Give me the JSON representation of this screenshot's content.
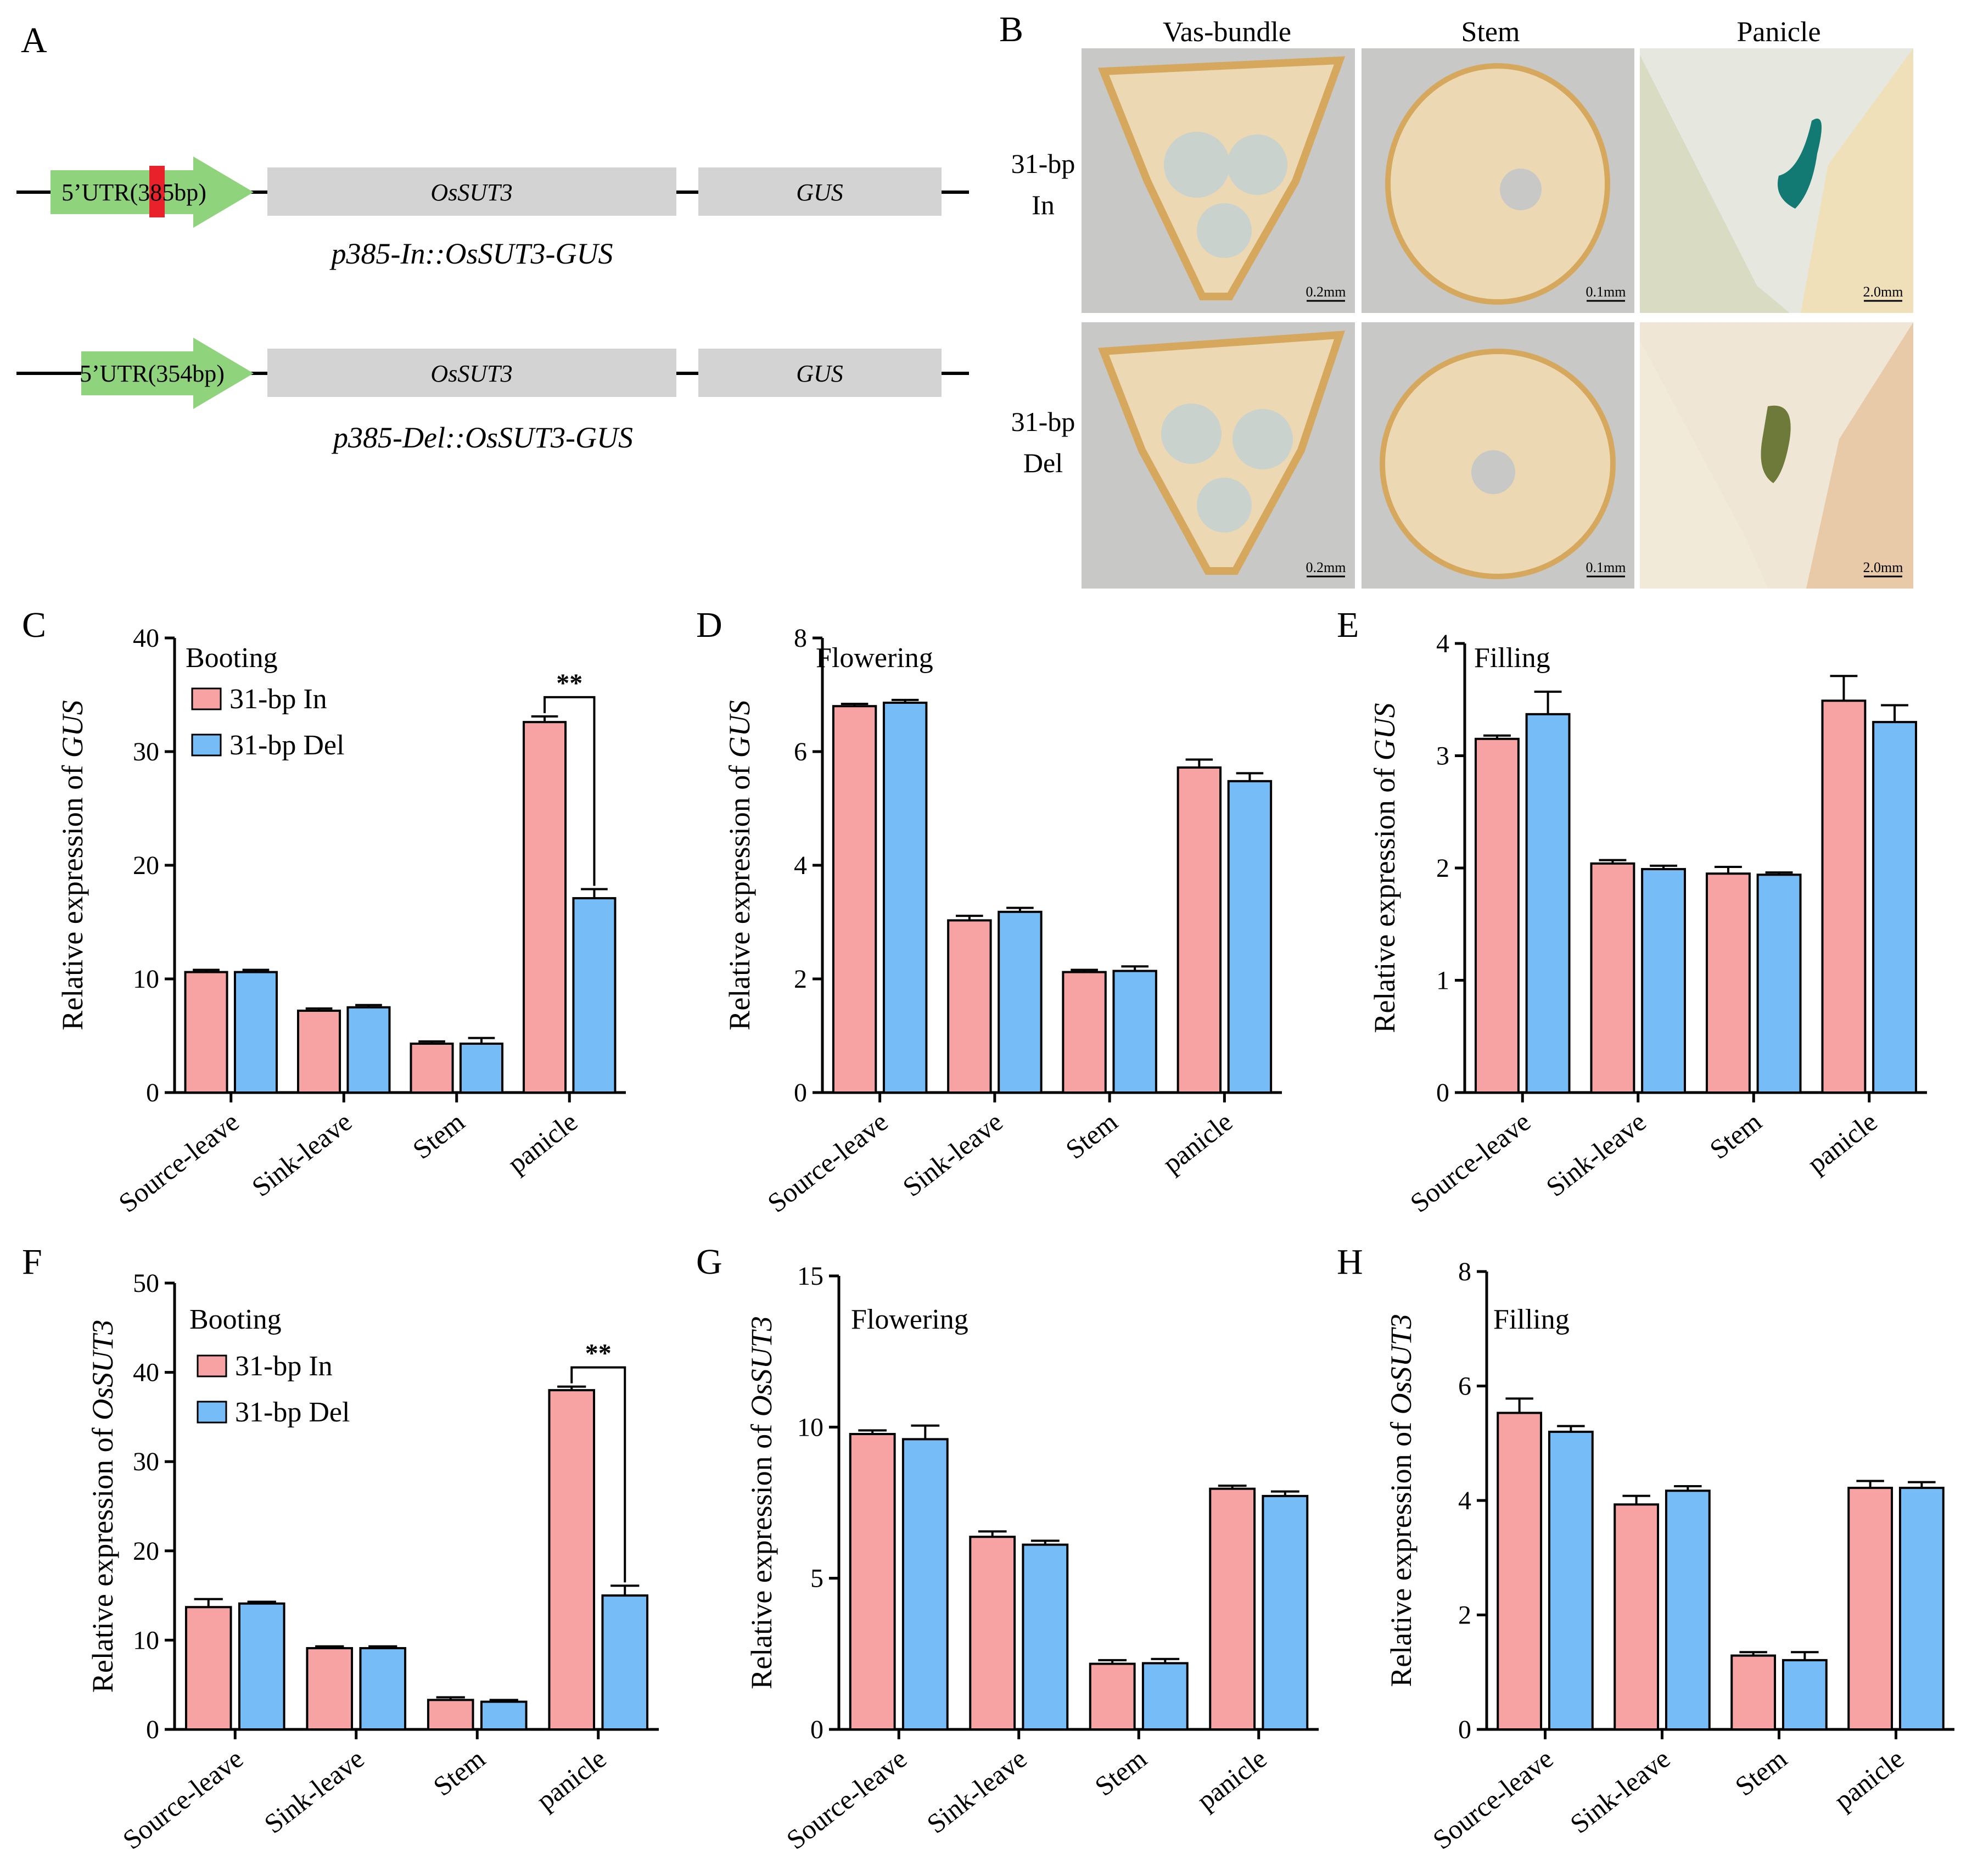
{
  "colors": {
    "in": "#f7a3a3",
    "del": "#76bcf6",
    "promoter": "#8fd47c",
    "insert_marker": "#e8212a",
    "gene_box": "#d3d3d3",
    "photo_bg": "#c8c8c6",
    "tissue": "#ecd9b4",
    "tissue_edge": "#d6a85e",
    "gus_stain": "#127a72"
  },
  "panelA": {
    "letter": "A",
    "row1": {
      "promoter_label": "5’UTR(385bp)",
      "gene1": "OsSUT3",
      "gene2": "GUS",
      "caption": "p385-In::OsSUT3-GUS"
    },
    "row2": {
      "promoter_label": "5’UTR(354bp)",
      "gene1": "OsSUT3",
      "gene2": "GUS",
      "caption": "p385-Del::OsSUT3-GUS"
    }
  },
  "panelB": {
    "letter": "B",
    "columns": [
      "Vas-bundle",
      "Stem",
      "Panicle"
    ],
    "rows": [
      {
        "label_line1": "31-bp",
        "label_line2": "In",
        "scales": [
          "0.2mm",
          "0.1mm",
          "2.0mm"
        ]
      },
      {
        "label_line1": "31-bp",
        "label_line2": "Del",
        "scales": [
          "0.2mm",
          "0.1mm",
          "2.0mm"
        ]
      }
    ]
  },
  "legend": {
    "in": "31-bp In",
    "del": "31-bp Del"
  },
  "chart_data": [
    {
      "letter": "C",
      "type": "bar",
      "title": "Booting",
      "ylabel_prefix": "Relative expression of ",
      "ylabel_gene": "GUS",
      "ylim": [
        0,
        40
      ],
      "yticks": [
        "0",
        "10",
        "20",
        "30",
        "40"
      ],
      "categories": [
        "Source-leave",
        "Sink-leave",
        "Stem",
        "panicle"
      ],
      "series": [
        {
          "name": "31-bp In",
          "values": [
            10.6,
            7.2,
            4.3,
            32.6
          ],
          "errors": [
            0.2,
            0.2,
            0.2,
            0.5
          ]
        },
        {
          "name": "31-bp Del",
          "values": [
            10.6,
            7.5,
            4.3,
            17.1
          ],
          "errors": [
            0.2,
            0.2,
            0.5,
            0.8
          ]
        }
      ],
      "significance": {
        "category_index": 3,
        "label": "**"
      },
      "legend": true
    },
    {
      "letter": "D",
      "type": "bar",
      "title": "Flowering",
      "ylabel_prefix": "Relative expression of ",
      "ylabel_gene": "GUS",
      "ylim": [
        0,
        8
      ],
      "yticks": [
        "0",
        "2",
        "4",
        "6",
        "8"
      ],
      "categories": [
        "Source-leave",
        "Sink-leave",
        "Stem",
        "panicle"
      ],
      "series": [
        {
          "name": "31-bp In",
          "values": [
            6.8,
            3.03,
            2.12,
            5.72
          ],
          "errors": [
            0.04,
            0.08,
            0.04,
            0.14
          ]
        },
        {
          "name": "31-bp Del",
          "values": [
            6.86,
            3.18,
            2.14,
            5.48
          ],
          "errors": [
            0.05,
            0.07,
            0.08,
            0.14
          ]
        }
      ],
      "legend": false
    },
    {
      "letter": "E",
      "type": "bar",
      "title": "Filling",
      "ylabel_prefix": "Relative expression of ",
      "ylabel_gene": "GUS",
      "ylim": [
        0,
        4
      ],
      "yticks": [
        "0",
        "1",
        "2",
        "3",
        "4"
      ],
      "categories": [
        "Source-leave",
        "Sink-leave",
        "Stem",
        "panicle"
      ],
      "series": [
        {
          "name": "31-bp In",
          "values": [
            3.15,
            2.04,
            1.95,
            3.49
          ],
          "errors": [
            0.03,
            0.03,
            0.06,
            0.22
          ]
        },
        {
          "name": "31-bp Del",
          "values": [
            3.37,
            1.99,
            1.94,
            3.3
          ],
          "errors": [
            0.2,
            0.03,
            0.02,
            0.15
          ]
        }
      ],
      "legend": false
    },
    {
      "letter": "F",
      "type": "bar",
      "title": "Booting",
      "ylabel_prefix": "Relative expression of ",
      "ylabel_gene": "OsSUT3",
      "ylim": [
        0,
        50
      ],
      "yticks": [
        "0",
        "10",
        "20",
        "30",
        "40",
        "50"
      ],
      "categories": [
        "Source-leave",
        "Sink-leave",
        "Stem",
        "panicle"
      ],
      "series": [
        {
          "name": "31-bp In",
          "values": [
            13.7,
            9.1,
            3.3,
            38.0
          ],
          "errors": [
            0.9,
            0.2,
            0.3,
            0.4
          ]
        },
        {
          "name": "31-bp Del",
          "values": [
            14.1,
            9.1,
            3.1,
            15.0
          ],
          "errors": [
            0.2,
            0.2,
            0.2,
            1.1
          ]
        }
      ],
      "significance": {
        "category_index": 3,
        "label": "**"
      },
      "legend": true
    },
    {
      "letter": "G",
      "type": "bar",
      "title": "Flowering",
      "ylabel_prefix": "Relative expression of ",
      "ylabel_gene": "OsSUT3",
      "ylim": [
        0,
        15
      ],
      "yticks": [
        "0",
        "5",
        "10",
        "15"
      ],
      "categories": [
        "Source-leave",
        "Sink-leave",
        "Stem",
        "panicle"
      ],
      "series": [
        {
          "name": "31-bp In",
          "values": [
            9.77,
            6.37,
            2.17,
            7.96
          ],
          "errors": [
            0.12,
            0.18,
            0.12,
            0.1
          ]
        },
        {
          "name": "31-bp Del",
          "values": [
            9.6,
            6.11,
            2.19,
            7.72
          ],
          "errors": [
            0.45,
            0.13,
            0.14,
            0.15
          ]
        }
      ],
      "legend": false
    },
    {
      "letter": "H",
      "type": "bar",
      "title": "Filling",
      "ylabel_prefix": "Relative expression of ",
      "ylabel_gene": "OsSUT3",
      "ylim": [
        0,
        8
      ],
      "yticks": [
        "0",
        "2",
        "4",
        "6",
        "8"
      ],
      "categories": [
        "Source-leave",
        "Sink-leave",
        "Stem",
        "panicle"
      ],
      "series": [
        {
          "name": "31-bp In",
          "values": [
            5.53,
            3.93,
            1.29,
            4.22
          ],
          "errors": [
            0.25,
            0.15,
            0.06,
            0.12
          ]
        },
        {
          "name": "31-bp Del",
          "values": [
            5.2,
            4.17,
            1.21,
            4.22
          ],
          "errors": [
            0.1,
            0.08,
            0.14,
            0.1
          ]
        }
      ],
      "legend": false
    }
  ]
}
